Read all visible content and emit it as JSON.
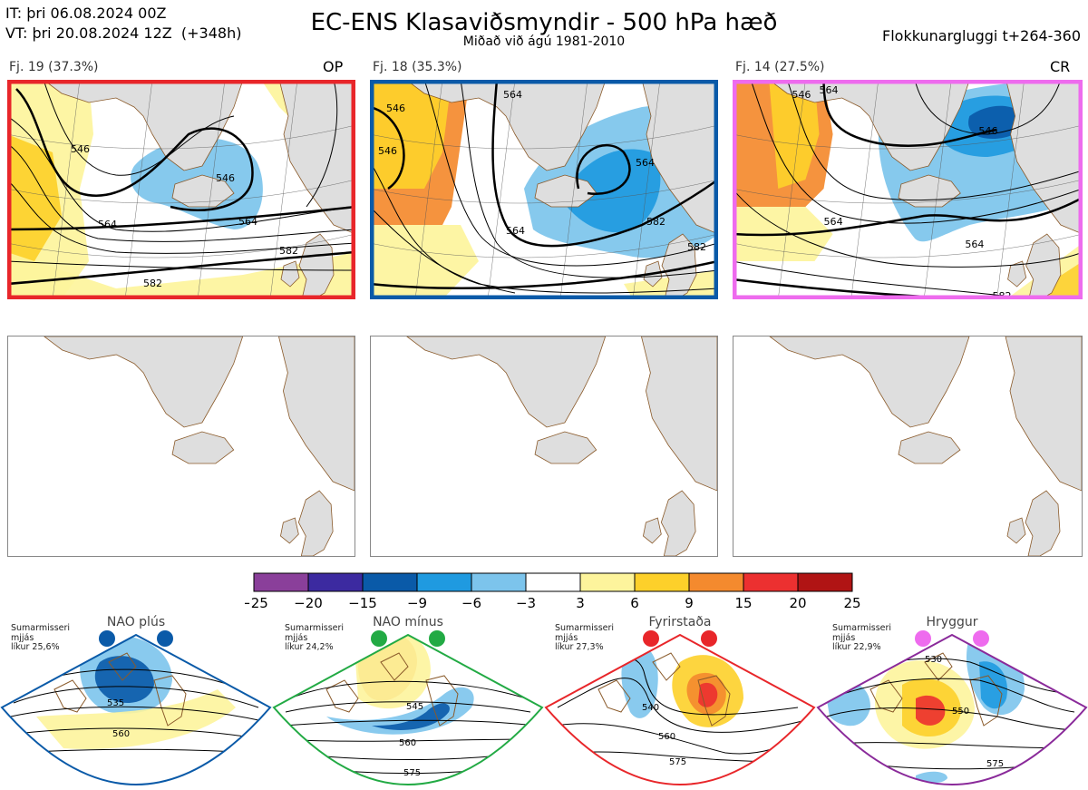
{
  "header": {
    "it_line": "IT: þri 06.08.2024 00Z",
    "vt_line": "VT: þri 20.08.2024 12Z  (+348h)",
    "title": "EC-ENS Klasaviðsmyndir - 500 hPa hæð",
    "subtitle": "Miðað við ágú 1981-2010",
    "window": "Flokkunargluggi t+264-360"
  },
  "colors": {
    "land": "#dedede",
    "coast": "#8a5a2a",
    "op_frame": "#e8262a",
    "cluster2_frame": "#0a5aa8",
    "cr_frame": "#ee6bee"
  },
  "panels": [
    {
      "label": "Fj. 19 (37.3%)",
      "tag": "OP",
      "frame": "#e8262a",
      "contours": [
        "546",
        "546",
        "564",
        "564",
        "582",
        "582"
      ]
    },
    {
      "label": "Fj. 18 (35.3%)",
      "tag": "",
      "frame": "#0a5aa8",
      "contours": [
        "546",
        "564",
        "546",
        "564",
        "564",
        "582",
        "582"
      ]
    },
    {
      "label": "Fj. 14 (27.5%)",
      "tag": "CR",
      "frame": "#ee6bee",
      "contours": [
        "546",
        "564",
        "546",
        "564",
        "564",
        "582"
      ]
    }
  ],
  "chart_data": {
    "type": "heatmap",
    "colorbar": {
      "ticks": [
        "−25",
        "−20",
        "−15",
        "−9",
        "−6",
        "−3",
        "3",
        "6",
        "9",
        "15",
        "20",
        "25"
      ],
      "colors": [
        "#8a3f9a",
        "#3c2aa0",
        "#0a5aa8",
        "#1f9ae0",
        "#7cc4ec",
        "#ffffff",
        "#fdf49c",
        "#fdd02a",
        "#f48a2e",
        "#ec3030",
        "#b01414"
      ]
    }
  },
  "regimes": [
    {
      "info": "Sumarmisseri\nmjjás\nlíkur 25,6%",
      "name": "NAO plús",
      "dot": "#0a5aa8",
      "frame": "#0a5aa8",
      "contours": [
        "535",
        "560"
      ]
    },
    {
      "info": "Sumarmisseri\nmjjás\nlíkur 24,2%",
      "name": "NAO mínus",
      "dot": "#22aa44",
      "frame": "#22aa44",
      "contours": [
        "545",
        "560",
        "575"
      ]
    },
    {
      "info": "Sumarmisseri\nmjjás\nlíkur 27,3%",
      "name": "Fyrirstaða",
      "dot": "#e8262a",
      "frame": "#e8262a",
      "contours": [
        "540",
        "560",
        "575"
      ]
    },
    {
      "info": "Sumarmisseri\nmjjás\nlíkur 22,9%",
      "name": "Hryggur",
      "dot": "#ee6bee",
      "frame": "#8a2a9a",
      "contours": [
        "530",
        "550",
        "575"
      ]
    }
  ]
}
